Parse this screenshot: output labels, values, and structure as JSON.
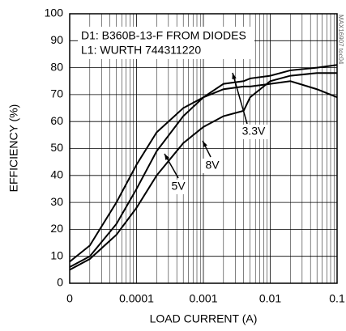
{
  "chart_data": {
    "type": "line",
    "x_label": "LOAD CURRENT (A)",
    "y_label": "EFFICIENCY (%)",
    "annotations": [
      "D1: B360B-13-F FROM DIODES",
      "L1:  WURTH 744311220"
    ],
    "side_note": "MAX16907 toc04",
    "log_x": true,
    "grid": true,
    "x": [
      1e-05,
      2e-05,
      5e-05,
      0.0001,
      0.0002,
      0.0005,
      0.001,
      0.002,
      0.004,
      0.005,
      0.01,
      0.02,
      0.05,
      0.1
    ],
    "series": [
      {
        "name": "3.3V",
        "color": "#000000",
        "values": [
          8,
          14,
          30,
          44,
          56,
          65,
          69,
          72,
          73,
          73,
          74,
          75,
          72,
          69
        ]
      },
      {
        "name": "5V",
        "color": "#000000",
        "values": [
          6,
          10,
          22,
          35,
          49,
          62,
          69,
          74,
          75,
          76,
          77,
          79,
          80,
          81
        ]
      },
      {
        "name": "8V",
        "color": "#000000",
        "values": [
          5,
          9,
          18,
          28,
          40,
          52,
          58,
          62,
          64,
          69,
          75,
          77,
          78,
          78
        ]
      }
    ],
    "xlim": [
      1e-05,
      0.1
    ],
    "xticks": [
      {
        "value": 1e-05,
        "label": "0"
      },
      0.0001,
      0.001,
      0.01,
      0.1
    ],
    "ylim": [
      0,
      100
    ],
    "yticks": [
      0,
      10,
      20,
      30,
      40,
      50,
      60,
      70,
      80,
      90,
      100
    ]
  }
}
